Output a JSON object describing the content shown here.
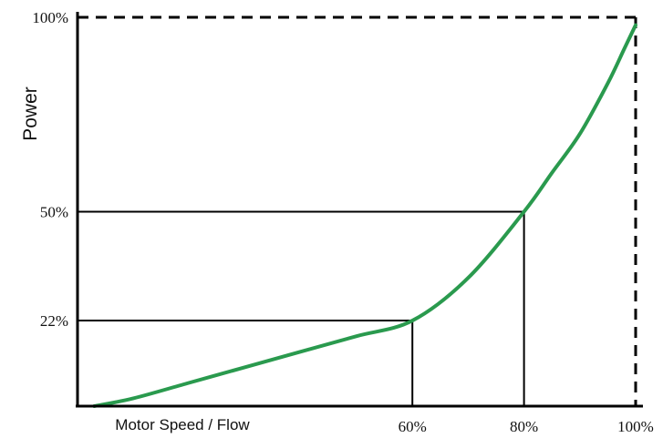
{
  "chart_data": {
    "type": "line",
    "title": "",
    "xlabel": "Motor Speed / Flow",
    "ylabel": "Power",
    "xlim": [
      0,
      100
    ],
    "ylim": [
      0,
      100
    ],
    "x_ticks": [
      "60%",
      "80%",
      "100%"
    ],
    "y_ticks": [
      "22%",
      "50%",
      "100%"
    ],
    "series": [
      {
        "x": [
          3,
          10,
          20,
          30,
          40,
          50,
          60,
          70,
          80,
          85,
          90,
          95,
          98,
          100
        ],
        "y": [
          0,
          2,
          6,
          10,
          14,
          18,
          22,
          33,
          50,
          60,
          70,
          83,
          92,
          98
        ],
        "color": "#2a9a4e"
      }
    ],
    "reference_points": [
      {
        "x": 60,
        "y": 22
      },
      {
        "x": 80,
        "y": 50
      }
    ],
    "grid": false,
    "limit_lines": {
      "style": "dashed",
      "x": 100,
      "y": 100
    }
  }
}
